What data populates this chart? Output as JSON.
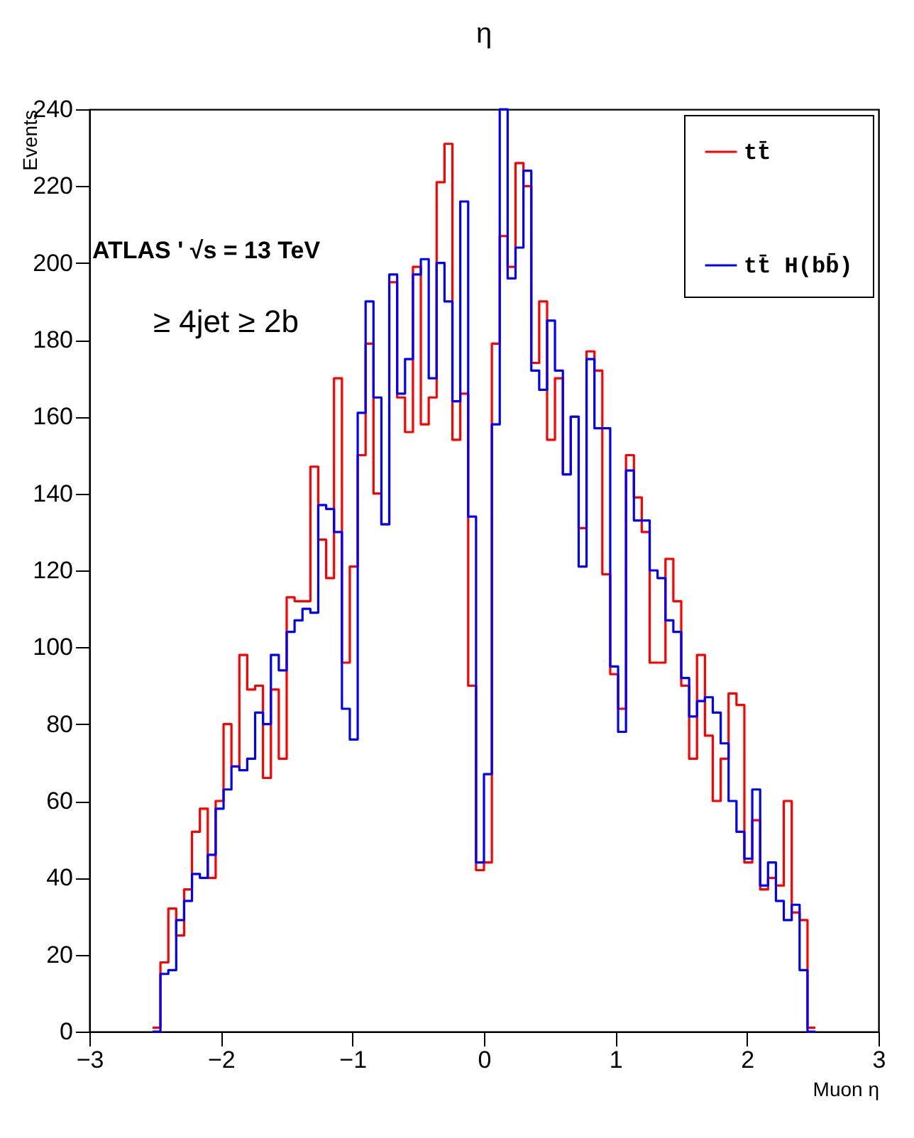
{
  "chart_data": {
    "type": "histogram",
    "title": "η",
    "xlabel": "Muon η",
    "ylabel": "Events",
    "annotations": [
      "ATLAS ' √s = 13 TeV",
      "≥ 4jet ≥ 2b"
    ],
    "bins": [
      -2.52,
      -2.46,
      -2.4,
      -2.34,
      -2.28,
      -2.22,
      -2.16,
      -2.1,
      -2.04,
      -1.98,
      -1.92,
      -1.86,
      -1.8,
      -1.74,
      -1.68,
      -1.62,
      -1.56,
      -1.5,
      -1.44,
      -1.38,
      -1.32,
      -1.26,
      -1.2,
      -1.14,
      -1.08,
      -1.02,
      -0.96,
      -0.9,
      -0.84,
      -0.78,
      -0.72,
      -0.66,
      -0.6,
      -0.54,
      -0.48,
      -0.42,
      -0.36,
      -0.3,
      -0.24,
      -0.18,
      -0.12,
      -0.06,
      0,
      0.06,
      0.12,
      0.18,
      0.24,
      0.3,
      0.36,
      0.42,
      0.48,
      0.54,
      0.6,
      0.66,
      0.72,
      0.78,
      0.84,
      0.9,
      0.96,
      1.02,
      1.08,
      1.14,
      1.2,
      1.26,
      1.32,
      1.38,
      1.44,
      1.5,
      1.56,
      1.62,
      1.68,
      1.74,
      1.8,
      1.86,
      1.92,
      1.98,
      2.04,
      2.1,
      2.16,
      2.22,
      2.28,
      2.34,
      2.4,
      2.46,
      2.52
    ],
    "series": [
      {
        "name": "tt̄",
        "color": "#ff0000",
        "values": [
          1,
          18,
          32,
          25,
          37,
          52,
          58,
          40,
          60,
          80,
          69,
          98,
          89,
          90,
          66,
          89,
          71,
          113,
          112,
          112,
          147,
          128,
          118,
          170,
          96,
          121,
          150,
          179,
          140,
          132,
          195,
          165,
          156,
          199,
          158,
          165,
          221,
          231,
          154,
          166,
          90,
          42,
          44,
          179,
          207,
          199,
          226,
          220,
          174,
          190,
          154,
          170,
          145,
          160,
          131,
          177,
          172,
          119,
          93,
          84,
          150,
          139,
          130,
          96,
          96,
          123,
          112,
          90,
          71,
          98,
          77,
          60,
          71,
          88,
          85,
          44,
          55,
          37,
          40,
          38,
          60,
          31,
          29,
          1
        ]
      },
      {
        "name": "tt̄ H(bb̄)",
        "color": "#0000ff",
        "values": [
          0,
          15,
          16,
          29,
          34,
          41,
          40,
          46,
          58,
          63,
          69,
          68,
          71,
          83,
          80,
          98,
          94,
          104,
          107,
          110,
          109,
          137,
          136,
          130,
          84,
          76,
          161,
          190,
          165,
          132,
          197,
          166,
          175,
          197,
          201,
          170,
          200,
          190,
          164,
          216,
          134,
          44,
          67,
          158,
          240,
          196,
          204,
          224,
          172,
          167,
          185,
          172,
          145,
          160,
          121,
          175,
          157,
          157,
          95,
          78,
          146,
          133,
          133,
          120,
          118,
          107,
          104,
          92,
          82,
          86,
          87,
          83,
          75,
          60,
          52,
          45,
          63,
          38,
          44,
          34,
          29,
          33,
          16,
          0
        ]
      }
    ],
    "xlim": [
      -3,
      3
    ],
    "xticks": [
      -3,
      -2,
      -1,
      0,
      1,
      2,
      3
    ],
    "ylim": [
      0,
      240
    ],
    "yticks": [
      0,
      20,
      40,
      60,
      80,
      100,
      120,
      140,
      160,
      180,
      200,
      220,
      240
    ],
    "legend": "top right"
  }
}
